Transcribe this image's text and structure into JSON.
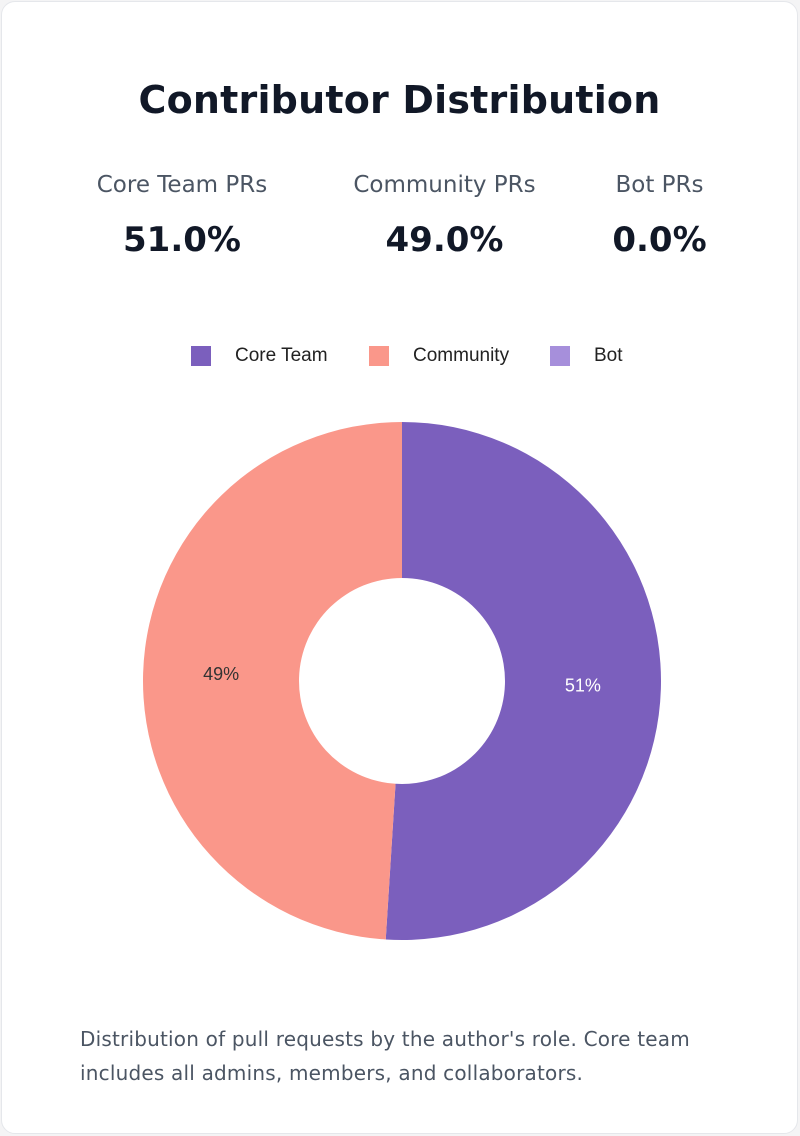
{
  "title": "Contributor Distribution",
  "stats": [
    {
      "label": "Core Team PRs",
      "value": "51.0%"
    },
    {
      "label": "Community PRs",
      "value": "49.0%"
    },
    {
      "label": "Bot PRs",
      "value": "0.0%"
    }
  ],
  "legend": [
    {
      "label": "Core Team",
      "color": "#7b5fbd"
    },
    {
      "label": "Community",
      "color": "#fa978a"
    },
    {
      "label": "Bot",
      "color": "#a68fdb"
    }
  ],
  "chart_data": {
    "type": "pie",
    "donut": true,
    "title": "",
    "legend_position": "top",
    "categories": [
      "Core Team",
      "Community",
      "Bot"
    ],
    "values": [
      51,
      49,
      0
    ],
    "data_labels": [
      "51%",
      "49%",
      ""
    ],
    "colors": [
      "#7b5fbd",
      "#fa978a",
      "#a68fdb"
    ],
    "label_colors": [
      "#ffffff",
      "#333333",
      "#333333"
    ]
  },
  "caption": "Distribution of pull requests by the author's role. Core team includes all admins, members, and collaborators."
}
